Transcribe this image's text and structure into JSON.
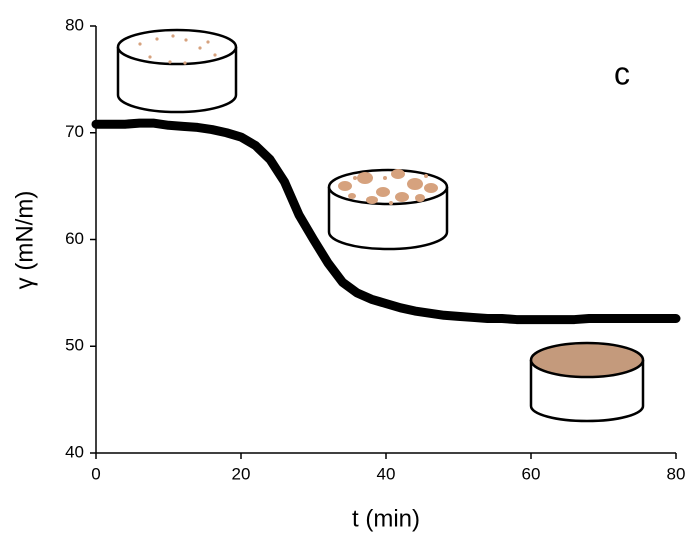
{
  "chart_data": {
    "type": "line",
    "x": [
      0,
      2,
      4,
      6,
      8,
      10,
      12,
      14,
      16,
      18,
      20,
      22,
      24,
      26,
      28,
      30,
      32,
      34,
      36,
      38,
      40,
      42,
      44,
      46,
      48,
      50,
      52,
      54,
      56,
      58,
      60,
      62,
      64,
      66,
      68,
      70,
      72,
      74,
      76,
      78,
      80
    ],
    "series": [
      {
        "color": "#000000",
        "values": [
          70.8,
          70.8,
          70.8,
          70.9,
          70.9,
          70.7,
          70.6,
          70.5,
          70.3,
          70.0,
          69.6,
          68.8,
          67.5,
          65.4,
          62.3,
          60.0,
          57.8,
          56.0,
          55.0,
          54.4,
          54.0,
          53.6,
          53.3,
          53.1,
          52.9,
          52.8,
          52.7,
          52.6,
          52.6,
          52.5,
          52.5,
          52.5,
          52.5,
          52.5,
          52.6,
          52.6,
          52.6,
          52.6,
          52.6,
          52.6,
          52.6
        ]
      }
    ],
    "xlim": [
      0,
      80
    ],
    "xticks": [
      0,
      20,
      40,
      60,
      80
    ],
    "ylim": [
      40,
      80
    ],
    "yticks": [
      40,
      50,
      60,
      70,
      80
    ],
    "xlabel": "t (min)",
    "ylabel": "γ (mN/m)",
    "annotation": "c"
  }
}
